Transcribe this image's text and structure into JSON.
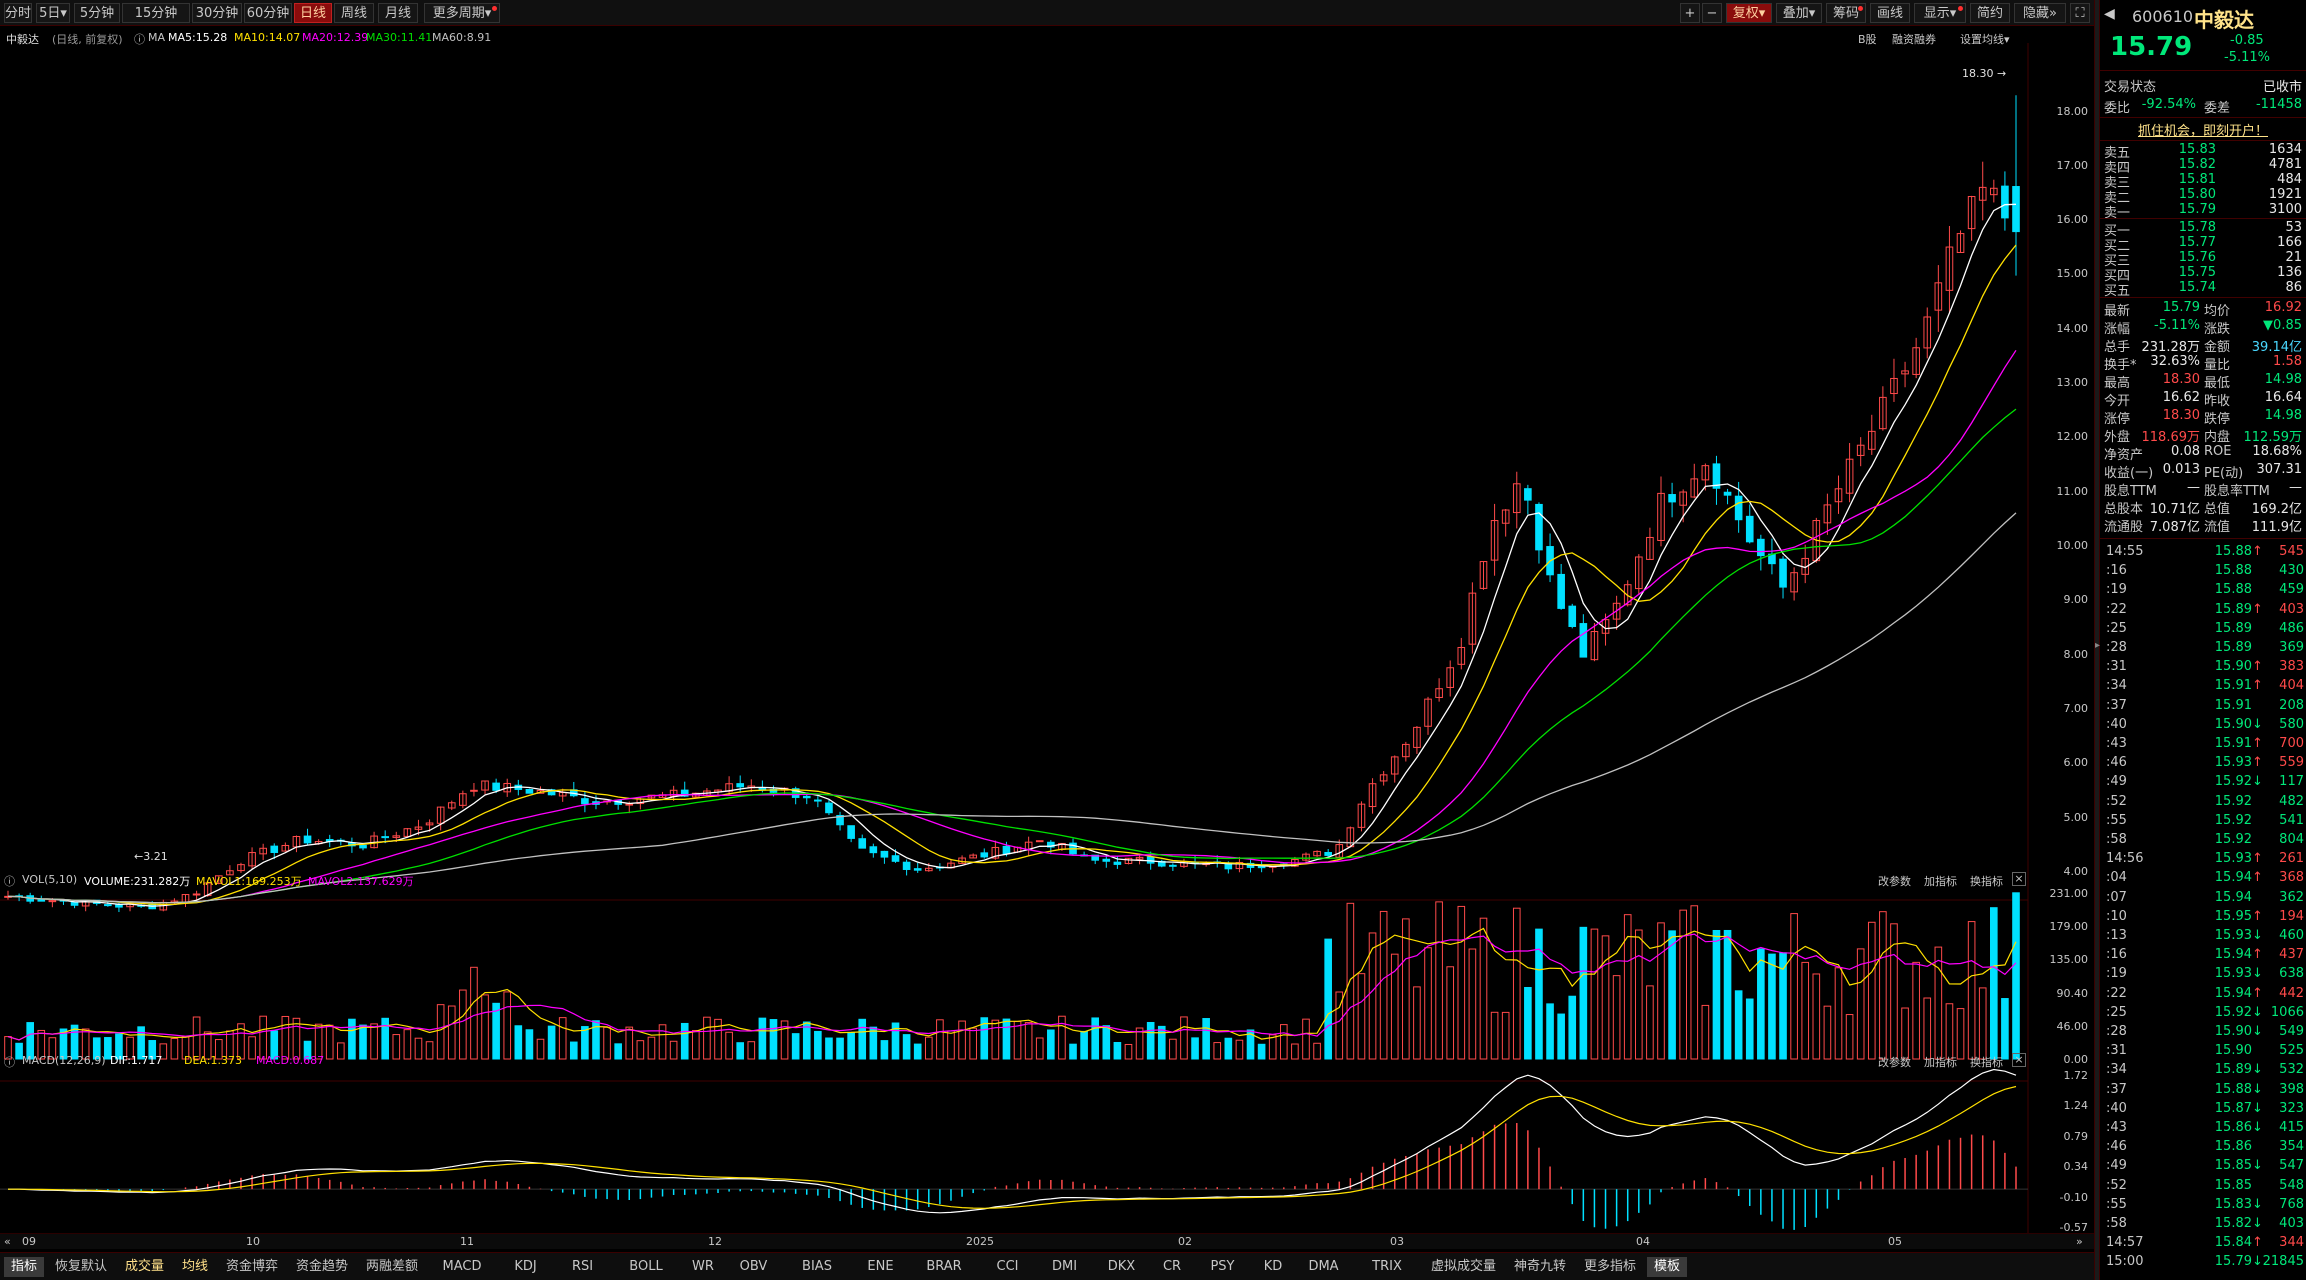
{
  "toolbar": {
    "periods": [
      "分时",
      "5日",
      "5分钟",
      "15分钟",
      "30分钟",
      "60分钟",
      "日线",
      "周线",
      "月线",
      "更多周期"
    ],
    "active_period": "日线",
    "right_buttons": [
      "复权",
      "叠加",
      "筹码",
      "画线",
      "显示",
      "简约",
      "隐藏"
    ],
    "plus_icon": "plus-icon",
    "minus_icon": "minus-icon",
    "fullscreen_icon": "fullscreen-icon"
  },
  "chart": {
    "stock_name": "中毅达",
    "mode": "(日线, 前复权)",
    "ma_title": "MA",
    "ma_items": [
      {
        "label": "MA5:15.28",
        "color": "#ffffff"
      },
      {
        "label": "MA10:14.07",
        "color": "#ffe000"
      },
      {
        "label": "MA20:12.39",
        "color": "#ff00ff"
      },
      {
        "label": "MA30:11.41",
        "color": "#00e000"
      },
      {
        "label": "MA60:8.91",
        "color": "#c0c0c0"
      }
    ],
    "right_links": [
      "B股",
      "融资融券",
      "设置均线"
    ],
    "price_axis": [
      "18.00",
      "17.00",
      "16.00",
      "15.00",
      "14.00",
      "13.00",
      "12.00",
      "11.00",
      "10.00",
      "9.00",
      "8.00",
      "7.00",
      "6.00",
      "5.00",
      "4.00"
    ],
    "high_label": "18.30",
    "low_label": "3.21",
    "vol_title": "VOL(5,10)",
    "vol_items": [
      "VOLUME:231.282万",
      "MAVOL1:169.253万",
      "MAVOL2:137.629万"
    ],
    "vol_axis": [
      "231.00",
      "179.00",
      "135.00",
      "90.40",
      "46.00",
      "0.00"
    ],
    "macd_title": "MACD(12,26,9)",
    "macd_items": [
      "DIF:1.717",
      "DEA:1.373",
      "MACD:0.687"
    ],
    "macd_axis": [
      "1.72",
      "1.24",
      "0.79",
      "0.34",
      "-0.10",
      "-0.57"
    ],
    "panel_links": [
      "改参数",
      "加指标",
      "换指标"
    ],
    "x_labels": [
      "09",
      "10",
      "11",
      "12",
      "2025",
      "02",
      "03",
      "04",
      "05"
    ]
  },
  "bottom_tabs": [
    "指标",
    "恢复默认",
    "成交量",
    "均线",
    "资金博弈",
    "资金趋势",
    "两融差额",
    "MACD",
    "KDJ",
    "RSI",
    "BOLL",
    "WR",
    "OBV",
    "BIAS",
    "ENE",
    "BRAR",
    "CCI",
    "DMI",
    "DKX",
    "CR",
    "PSY",
    "KD",
    "DMA",
    "TRIX",
    "虚拟成交量",
    "神奇九转",
    "更多指标",
    "模板"
  ],
  "quote": {
    "code": "600610",
    "name": "中毅达",
    "price": "15.79",
    "change": "-0.85",
    "pct": "-5.11%",
    "trade_status_label": "交易状态",
    "trade_status": "已收市",
    "ratio_label": "委比",
    "ratio": "-92.54%",
    "diff_label": "委差",
    "diff": "-11458",
    "promo": "抓住机会，即刻开户！",
    "asks": [
      {
        "label": "卖五",
        "price": "15.83",
        "vol": "1634"
      },
      {
        "label": "卖四",
        "price": "15.82",
        "vol": "4781"
      },
      {
        "label": "卖三",
        "price": "15.81",
        "vol": "484"
      },
      {
        "label": "卖二",
        "price": "15.80",
        "vol": "1921"
      },
      {
        "label": "卖一",
        "price": "15.79",
        "vol": "3100"
      }
    ],
    "bids": [
      {
        "label": "买一",
        "price": "15.78",
        "vol": "53"
      },
      {
        "label": "买二",
        "price": "15.77",
        "vol": "166"
      },
      {
        "label": "买三",
        "price": "15.76",
        "vol": "21"
      },
      {
        "label": "买四",
        "price": "15.75",
        "vol": "136"
      },
      {
        "label": "买五",
        "price": "15.74",
        "vol": "86"
      }
    ],
    "stats": [
      {
        "k1": "最新",
        "v1": "15.79",
        "c1": "g",
        "k2": "均价",
        "v2": "16.92",
        "c2": "r"
      },
      {
        "k1": "涨幅",
        "v1": "-5.11%",
        "c1": "g",
        "k2": "涨跌",
        "v2": "▼0.85",
        "c2": "g"
      },
      {
        "k1": "总手",
        "v1": "231.28万",
        "c1": "w",
        "k2": "金额",
        "v2": "39.14亿",
        "c2": "c"
      },
      {
        "k1": "换手*",
        "v1": "32.63%",
        "c1": "w",
        "k2": "量比",
        "v2": "1.58",
        "c2": "r"
      },
      {
        "k1": "最高",
        "v1": "18.30",
        "c1": "r",
        "k2": "最低",
        "v2": "14.98",
        "c2": "g"
      },
      {
        "k1": "今开",
        "v1": "16.62",
        "c1": "w",
        "k2": "昨收",
        "v2": "16.64",
        "c2": "w"
      },
      {
        "k1": "涨停",
        "v1": "18.30",
        "c1": "r",
        "k2": "跌停",
        "v2": "14.98",
        "c2": "g"
      },
      {
        "k1": "外盘",
        "v1": "118.69万",
        "c1": "r",
        "k2": "内盘",
        "v2": "112.59万",
        "c2": "g"
      },
      {
        "k1": "净资产",
        "v1": "0.08",
        "c1": "w",
        "k2": "ROE",
        "v2": "18.68%",
        "c2": "w"
      },
      {
        "k1": "收益(一)",
        "v1": "0.013",
        "c1": "w",
        "k2": "PE(动)",
        "v2": "307.31",
        "c2": "w"
      },
      {
        "k1": "股息TTM",
        "v1": "—",
        "c1": "w",
        "k2": "股息率TTM",
        "v2": "—",
        "c2": "w"
      },
      {
        "k1": "总股本",
        "v1": "10.71亿",
        "c1": "w",
        "k2": "总值",
        "v2": "169.2亿",
        "c2": "w"
      },
      {
        "k1": "流通股",
        "v1": "7.087亿",
        "c1": "w",
        "k2": "流值",
        "v2": "111.9亿",
        "c2": "w"
      }
    ],
    "ticks": [
      {
        "t": "14:55",
        "p": "15.88",
        "d": "u",
        "v": "545"
      },
      {
        "t": ":16",
        "p": "15.88",
        "d": "",
        "v": "430"
      },
      {
        "t": ":19",
        "p": "15.88",
        "d": "",
        "v": "459"
      },
      {
        "t": ":22",
        "p": "15.89",
        "d": "u",
        "v": "403"
      },
      {
        "t": ":25",
        "p": "15.89",
        "d": "",
        "v": "486"
      },
      {
        "t": ":28",
        "p": "15.89",
        "d": "",
        "v": "369"
      },
      {
        "t": ":31",
        "p": "15.90",
        "d": "u",
        "v": "383"
      },
      {
        "t": ":34",
        "p": "15.91",
        "d": "u",
        "v": "404"
      },
      {
        "t": ":37",
        "p": "15.91",
        "d": "",
        "v": "208"
      },
      {
        "t": ":40",
        "p": "15.90",
        "d": "d",
        "v": "580"
      },
      {
        "t": ":43",
        "p": "15.91",
        "d": "u",
        "v": "700"
      },
      {
        "t": ":46",
        "p": "15.93",
        "d": "u",
        "v": "559"
      },
      {
        "t": ":49",
        "p": "15.92",
        "d": "d",
        "v": "117"
      },
      {
        "t": ":52",
        "p": "15.92",
        "d": "",
        "v": "482"
      },
      {
        "t": ":55",
        "p": "15.92",
        "d": "",
        "v": "541"
      },
      {
        "t": ":58",
        "p": "15.92",
        "d": "",
        "v": "804"
      },
      {
        "t": "14:56",
        "p": "15.93",
        "d": "u",
        "v": "261"
      },
      {
        "t": ":04",
        "p": "15.94",
        "d": "u",
        "v": "368"
      },
      {
        "t": ":07",
        "p": "15.94",
        "d": "",
        "v": "362"
      },
      {
        "t": ":10",
        "p": "15.95",
        "d": "u",
        "v": "194"
      },
      {
        "t": ":13",
        "p": "15.93",
        "d": "d",
        "v": "460"
      },
      {
        "t": ":16",
        "p": "15.94",
        "d": "u",
        "v": "437"
      },
      {
        "t": ":19",
        "p": "15.93",
        "d": "d",
        "v": "638"
      },
      {
        "t": ":22",
        "p": "15.94",
        "d": "u",
        "v": "442"
      },
      {
        "t": ":25",
        "p": "15.92",
        "d": "d",
        "v": "1066"
      },
      {
        "t": ":28",
        "p": "15.90",
        "d": "d",
        "v": "549"
      },
      {
        "t": ":31",
        "p": "15.90",
        "d": "",
        "v": "525"
      },
      {
        "t": ":34",
        "p": "15.89",
        "d": "d",
        "v": "532"
      },
      {
        "t": ":37",
        "p": "15.88",
        "d": "d",
        "v": "398"
      },
      {
        "t": ":40",
        "p": "15.87",
        "d": "d",
        "v": "323"
      },
      {
        "t": ":43",
        "p": "15.86",
        "d": "d",
        "v": "415"
      },
      {
        "t": ":46",
        "p": "15.86",
        "d": "",
        "v": "354"
      },
      {
        "t": ":49",
        "p": "15.85",
        "d": "d",
        "v": "547"
      },
      {
        "t": ":52",
        "p": "15.85",
        "d": "",
        "v": "548"
      },
      {
        "t": ":55",
        "p": "15.83",
        "d": "d",
        "v": "768"
      },
      {
        "t": ":58",
        "p": "15.82",
        "d": "d",
        "v": "403"
      },
      {
        "t": "14:57",
        "p": "15.84",
        "d": "u",
        "v": "344"
      },
      {
        "t": "15:00",
        "p": "15.79",
        "d": "d",
        "v": "21845"
      }
    ]
  },
  "colors": {
    "up": "#ff4a4a",
    "down": "#00e0ff",
    "ask_bid_price": "#00e87a",
    "accent": "#8a0c0c"
  },
  "chart_data": {
    "type": "candlestick",
    "price_range": [
      3.21,
      18.3
    ],
    "last": {
      "open": 16.62,
      "high": 18.3,
      "low": 14.98,
      "close": 15.79
    },
    "ma_last": {
      "MA5": 15.28,
      "MA10": 14.07,
      "MA20": 12.39,
      "MA30": 11.41,
      "MA60": 8.91
    },
    "volume_last": 231.282,
    "macd_last": {
      "DIF": 1.717,
      "DEA": 1.373,
      "MACD": 0.687
    },
    "x_labels": [
      "09",
      "10",
      "11",
      "12",
      "2025",
      "02",
      "03",
      "04",
      "05"
    ]
  }
}
